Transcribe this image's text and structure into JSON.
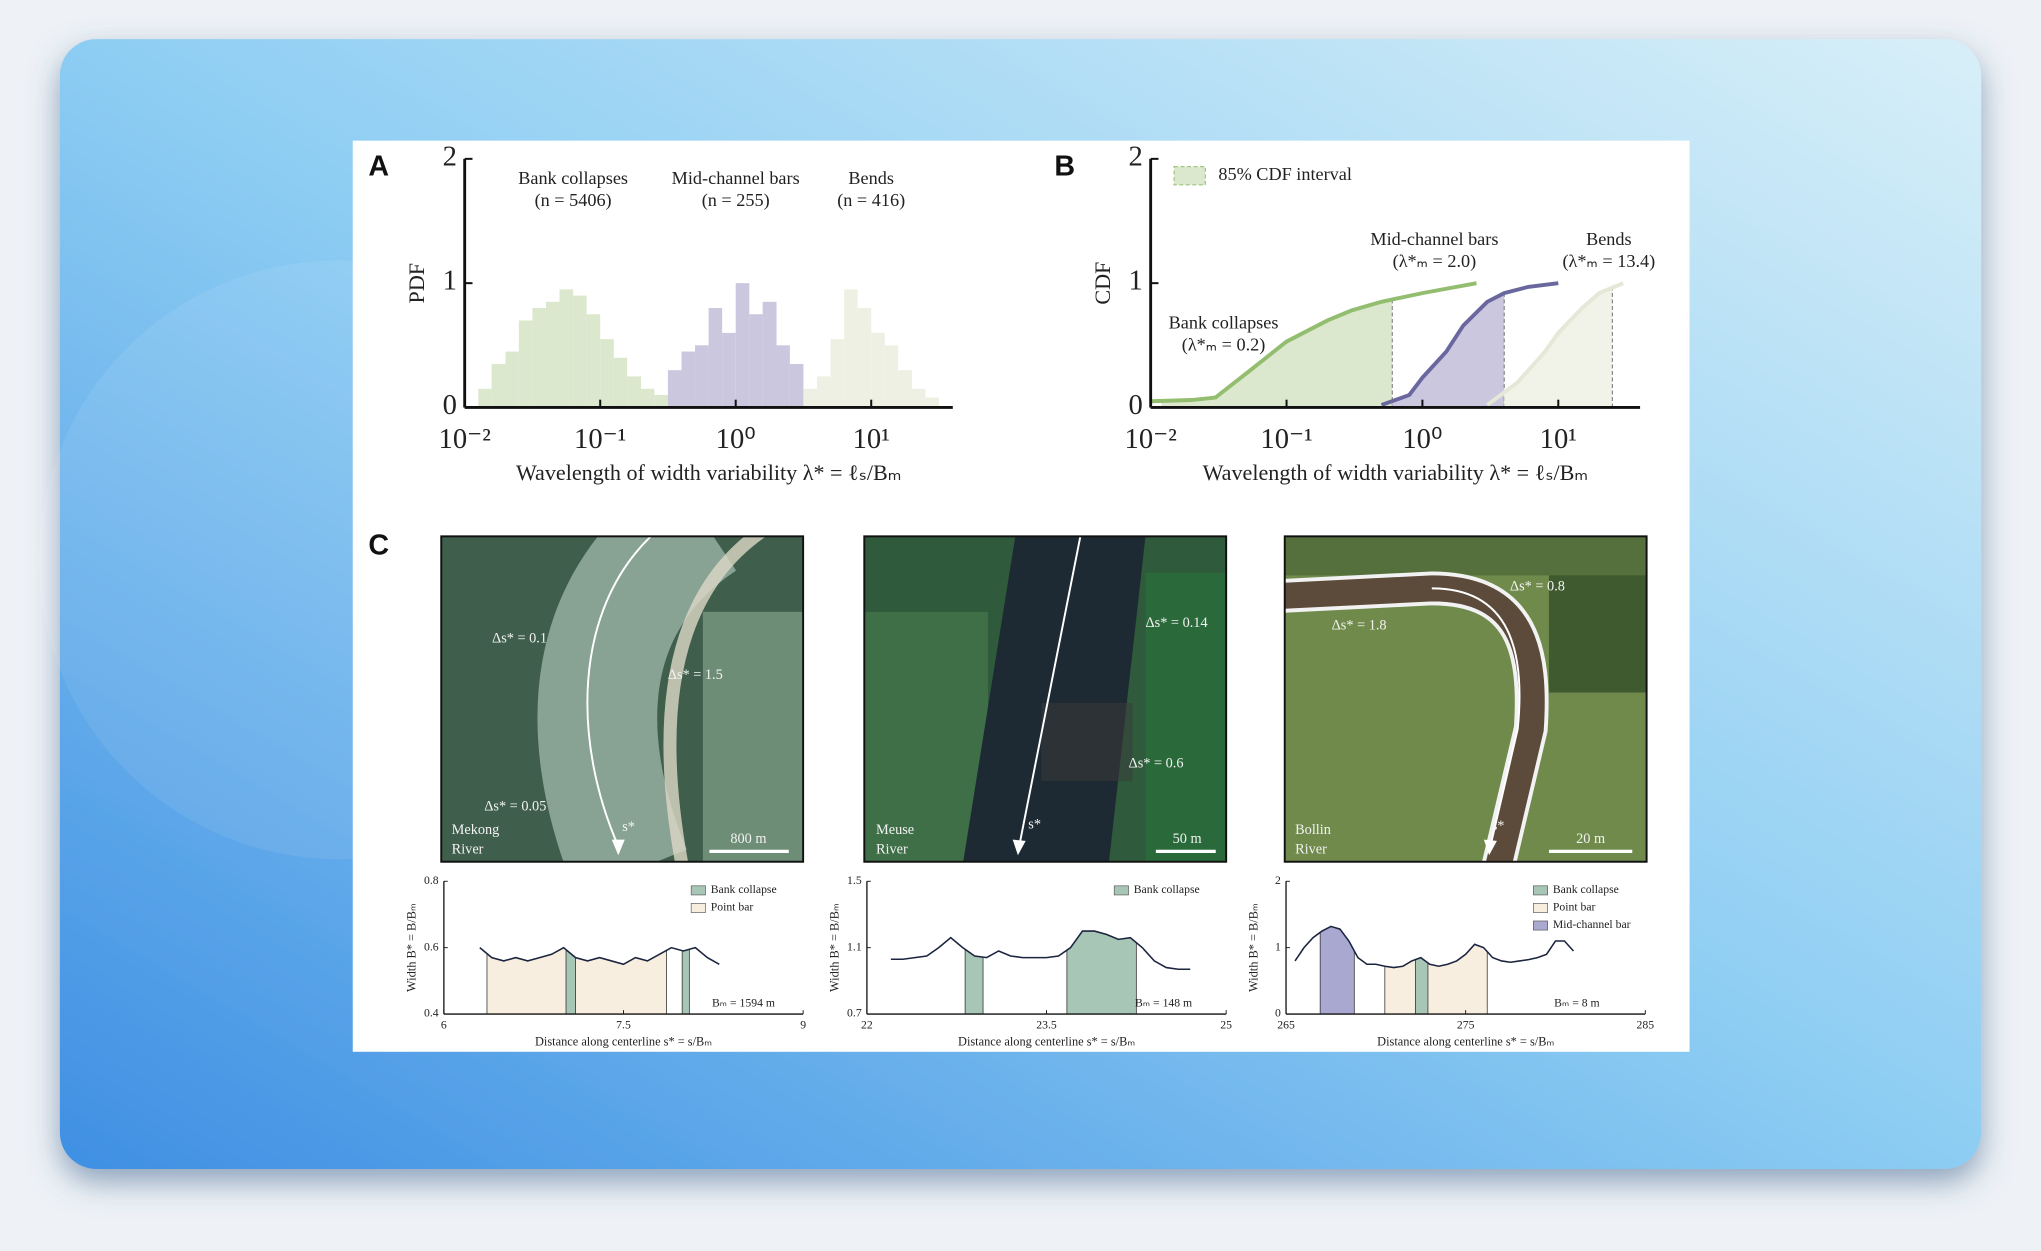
{
  "panels": [
    "A",
    "B",
    "C"
  ],
  "images": [
    {
      "labels": [
        "Δs* = 0.1",
        "Δs* = 1.5",
        "Δs* = 0.05"
      ],
      "name": [
        "Mekong",
        "River"
      ],
      "s_label": "s*",
      "scale": "800 m"
    },
    {
      "labels": [
        "Δs* = 0.14",
        "Δs* = 0.6"
      ],
      "name": [
        "Meuse",
        "River"
      ],
      "s_label": "s*",
      "scale": "50 m"
    },
    {
      "labels": [
        "Δs* = 0.8",
        "Δs* = 1.8"
      ],
      "name": [
        "Bollin",
        "River"
      ],
      "s_label": "s*",
      "scale": "20 m"
    }
  ],
  "chart_data": [
    {
      "type": "histogram",
      "ylabel": "PDF",
      "xlabel": "Wavelength of width variability λ* = ℓₛ/Bₘ",
      "xscale": "log",
      "xlim": [
        0.01,
        40
      ],
      "ylim": [
        0,
        2
      ],
      "xticks": [
        {
          "value": 0.01,
          "label": "10⁻²"
        },
        {
          "value": 0.1,
          "label": "10⁻¹"
        },
        {
          "value": 1,
          "label": "10⁰"
        },
        {
          "value": 10,
          "label": "10¹"
        }
      ],
      "yticks": [
        0,
        1,
        2
      ],
      "series": [
        {
          "name": "Bank collapses",
          "annotation": "(n = 5406)",
          "color": "#dbe8cd",
          "bins": [
            0.0126,
            0.0158,
            0.02,
            0.0251,
            0.0316,
            0.0398,
            0.0501,
            0.0631,
            0.0794,
            0.1,
            0.126,
            0.158,
            0.2,
            0.251,
            0.316
          ],
          "values": [
            0.15,
            0.35,
            0.45,
            0.7,
            0.8,
            0.85,
            0.95,
            0.9,
            0.75,
            0.55,
            0.4,
            0.25,
            0.15,
            0.1
          ]
        },
        {
          "name": "Mid-channel bars",
          "annotation": "(n = 255)",
          "color": "#cac7df",
          "bins": [
            0.316,
            0.398,
            0.501,
            0.631,
            0.794,
            1,
            1.26,
            1.58,
            2,
            2.51,
            3.16
          ],
          "values": [
            0.3,
            0.45,
            0.5,
            0.8,
            0.6,
            1.0,
            0.75,
            0.85,
            0.5,
            0.35
          ]
        },
        {
          "name": "Bends",
          "annotation": "(n = 416)",
          "color": "#eef0e3",
          "bins": [
            3.16,
            3.98,
            5.01,
            6.31,
            7.94,
            10,
            12.6,
            15.8,
            20,
            25.1,
            31.6
          ],
          "values": [
            0.15,
            0.25,
            0.55,
            0.95,
            0.8,
            0.6,
            0.5,
            0.3,
            0.15,
            0.08
          ]
        }
      ]
    },
    {
      "type": "line",
      "ylabel": "CDF",
      "xlabel": "Wavelength of width variability λ* = ℓₛ/Bₘ",
      "xscale": "log",
      "xlim": [
        0.01,
        40
      ],
      "ylim": [
        0,
        2
      ],
      "xticks": [
        {
          "value": 0.01,
          "label": "10⁻²"
        },
        {
          "value": 0.1,
          "label": "10⁻¹"
        },
        {
          "value": 1,
          "label": "10⁰"
        },
        {
          "value": 10,
          "label": "10¹"
        }
      ],
      "yticks": [
        0,
        1,
        2
      ],
      "interval_legend": "85% CDF interval",
      "series": [
        {
          "name": "Bank collapses",
          "annotation": "(λ*ₘ = 0.2)",
          "color": "#93bd6f",
          "shade": "#dbe8cd",
          "x": [
            0.01,
            0.02,
            0.03,
            0.05,
            0.1,
            0.2,
            0.3,
            0.5,
            1,
            2.5
          ],
          "values": [
            0.05,
            0.06,
            0.08,
            0.27,
            0.53,
            0.7,
            0.78,
            0.85,
            0.92,
            1.0
          ],
          "interval": [
            0.012,
            0.6
          ]
        },
        {
          "name": "Mid-channel bars",
          "annotation": "(λ*ₘ = 2.0)",
          "color": "#6a679f",
          "shade": "#cac7df",
          "x": [
            0.5,
            0.8,
            1,
            1.5,
            2,
            3,
            4,
            6,
            10
          ],
          "values": [
            0.02,
            0.1,
            0.24,
            0.45,
            0.66,
            0.85,
            0.92,
            0.97,
            1.0
          ],
          "interval": [
            0.6,
            4
          ]
        },
        {
          "name": "Bends",
          "annotation": "(λ*ₘ = 13.4)",
          "color": "#e4e8d6",
          "shade": "#f1f2e8",
          "x": [
            3,
            5,
            8,
            10,
            15,
            20,
            30
          ],
          "values": [
            0.02,
            0.2,
            0.45,
            0.6,
            0.8,
            0.92,
            1.0
          ],
          "interval": [
            4,
            25
          ]
        }
      ]
    },
    {
      "type": "line",
      "ylabel": "Width B* = B/Bₘ",
      "xlabel": "Distance along centerline s* = s/Bₘ",
      "xlim": [
        6,
        9
      ],
      "xticks": [
        6,
        7.5,
        9
      ],
      "ylim": [
        0.4,
        0.8
      ],
      "yticks": [
        0.4,
        0.6,
        0.8
      ],
      "note": "Bₘ = 1594 m",
      "series": [
        {
          "color": "#1c2540",
          "x": [
            6.3,
            6.4,
            6.5,
            6.6,
            6.7,
            6.8,
            6.9,
            7.0,
            7.1,
            7.2,
            7.3,
            7.4,
            7.5,
            7.6,
            7.7,
            7.8,
            7.9,
            8.0,
            8.1,
            8.2,
            8.3
          ],
          "values": [
            0.6,
            0.57,
            0.56,
            0.57,
            0.56,
            0.57,
            0.58,
            0.6,
            0.57,
            0.56,
            0.57,
            0.56,
            0.55,
            0.57,
            0.56,
            0.58,
            0.6,
            0.59,
            0.6,
            0.57,
            0.55
          ]
        }
      ],
      "regions": [
        {
          "name": "Bank collapse",
          "color": "#a8c6b6",
          "spans": [
            [
              7.02,
              7.1
            ],
            [
              7.99,
              8.05
            ]
          ]
        },
        {
          "name": "Point bar",
          "color": "#f8eedf",
          "spans": [
            [
              6.36,
              7.86
            ]
          ]
        }
      ]
    },
    {
      "type": "line",
      "ylabel": "Width B* = B/Bₘ",
      "xlabel": "Distance along centerline s* = s/Bₘ",
      "xlim": [
        22,
        25
      ],
      "xticks": [
        22,
        23.5,
        25
      ],
      "ylim": [
        0.7,
        1.5
      ],
      "yticks": [
        0.7,
        1.1,
        1.5
      ],
      "note": "Bₘ = 148 m",
      "series": [
        {
          "color": "#1c2540",
          "x": [
            22.2,
            22.3,
            22.4,
            22.5,
            22.6,
            22.7,
            22.8,
            22.9,
            23.0,
            23.1,
            23.2,
            23.3,
            23.4,
            23.5,
            23.6,
            23.7,
            23.8,
            23.9,
            24.0,
            24.1,
            24.2,
            24.3,
            24.4,
            24.5,
            24.6,
            24.7
          ],
          "values": [
            1.03,
            1.03,
            1.04,
            1.05,
            1.1,
            1.16,
            1.1,
            1.05,
            1.04,
            1.08,
            1.05,
            1.04,
            1.04,
            1.04,
            1.05,
            1.1,
            1.2,
            1.2,
            1.18,
            1.15,
            1.16,
            1.1,
            1.02,
            0.98,
            0.97,
            0.97
          ]
        }
      ],
      "regions": [
        {
          "name": "Bank collapse",
          "color": "#a8c6b6",
          "spans": [
            [
              22.82,
              22.97
            ],
            [
              23.67,
              24.25
            ]
          ]
        }
      ]
    },
    {
      "type": "line",
      "ylabel": "Width B* = B/Bₘ",
      "xlabel": "Distance along centerline s* = s/Bₘ",
      "xlim": [
        265,
        285
      ],
      "xticks": [
        265,
        275,
        285
      ],
      "ylim": [
        0,
        2
      ],
      "yticks": [
        0,
        1,
        2
      ],
      "note": "Bₘ = 8 m",
      "series": [
        {
          "color": "#1c2540",
          "x": [
            265.5,
            266,
            266.5,
            267,
            267.5,
            268,
            268.5,
            269,
            269.5,
            270,
            270.5,
            271,
            271.5,
            272,
            272.5,
            273,
            273.5,
            274,
            274.5,
            275,
            275.5,
            276,
            276.5,
            277,
            277.5,
            278,
            278.5,
            279,
            279.5,
            280,
            280.5,
            281
          ],
          "values": [
            0.8,
            1.0,
            1.15,
            1.25,
            1.32,
            1.28,
            1.1,
            0.85,
            0.75,
            0.75,
            0.72,
            0.7,
            0.72,
            0.8,
            0.85,
            0.75,
            0.72,
            0.75,
            0.8,
            0.9,
            1.05,
            1.0,
            0.85,
            0.8,
            0.78,
            0.8,
            0.82,
            0.85,
            0.9,
            1.1,
            1.1,
            0.95
          ]
        }
      ],
      "regions": [
        {
          "name": "Bank collapse",
          "color": "#a8c6b6",
          "spans": [
            [
              272.2,
              272.9
            ]
          ]
        },
        {
          "name": "Point bar",
          "color": "#f8eedf",
          "spans": [
            [
              270.5,
              276.2
            ]
          ]
        },
        {
          "name": "Mid-channel bar",
          "color": "#a9a8d0",
          "spans": [
            [
              266.9,
              268.8
            ]
          ]
        }
      ]
    }
  ]
}
